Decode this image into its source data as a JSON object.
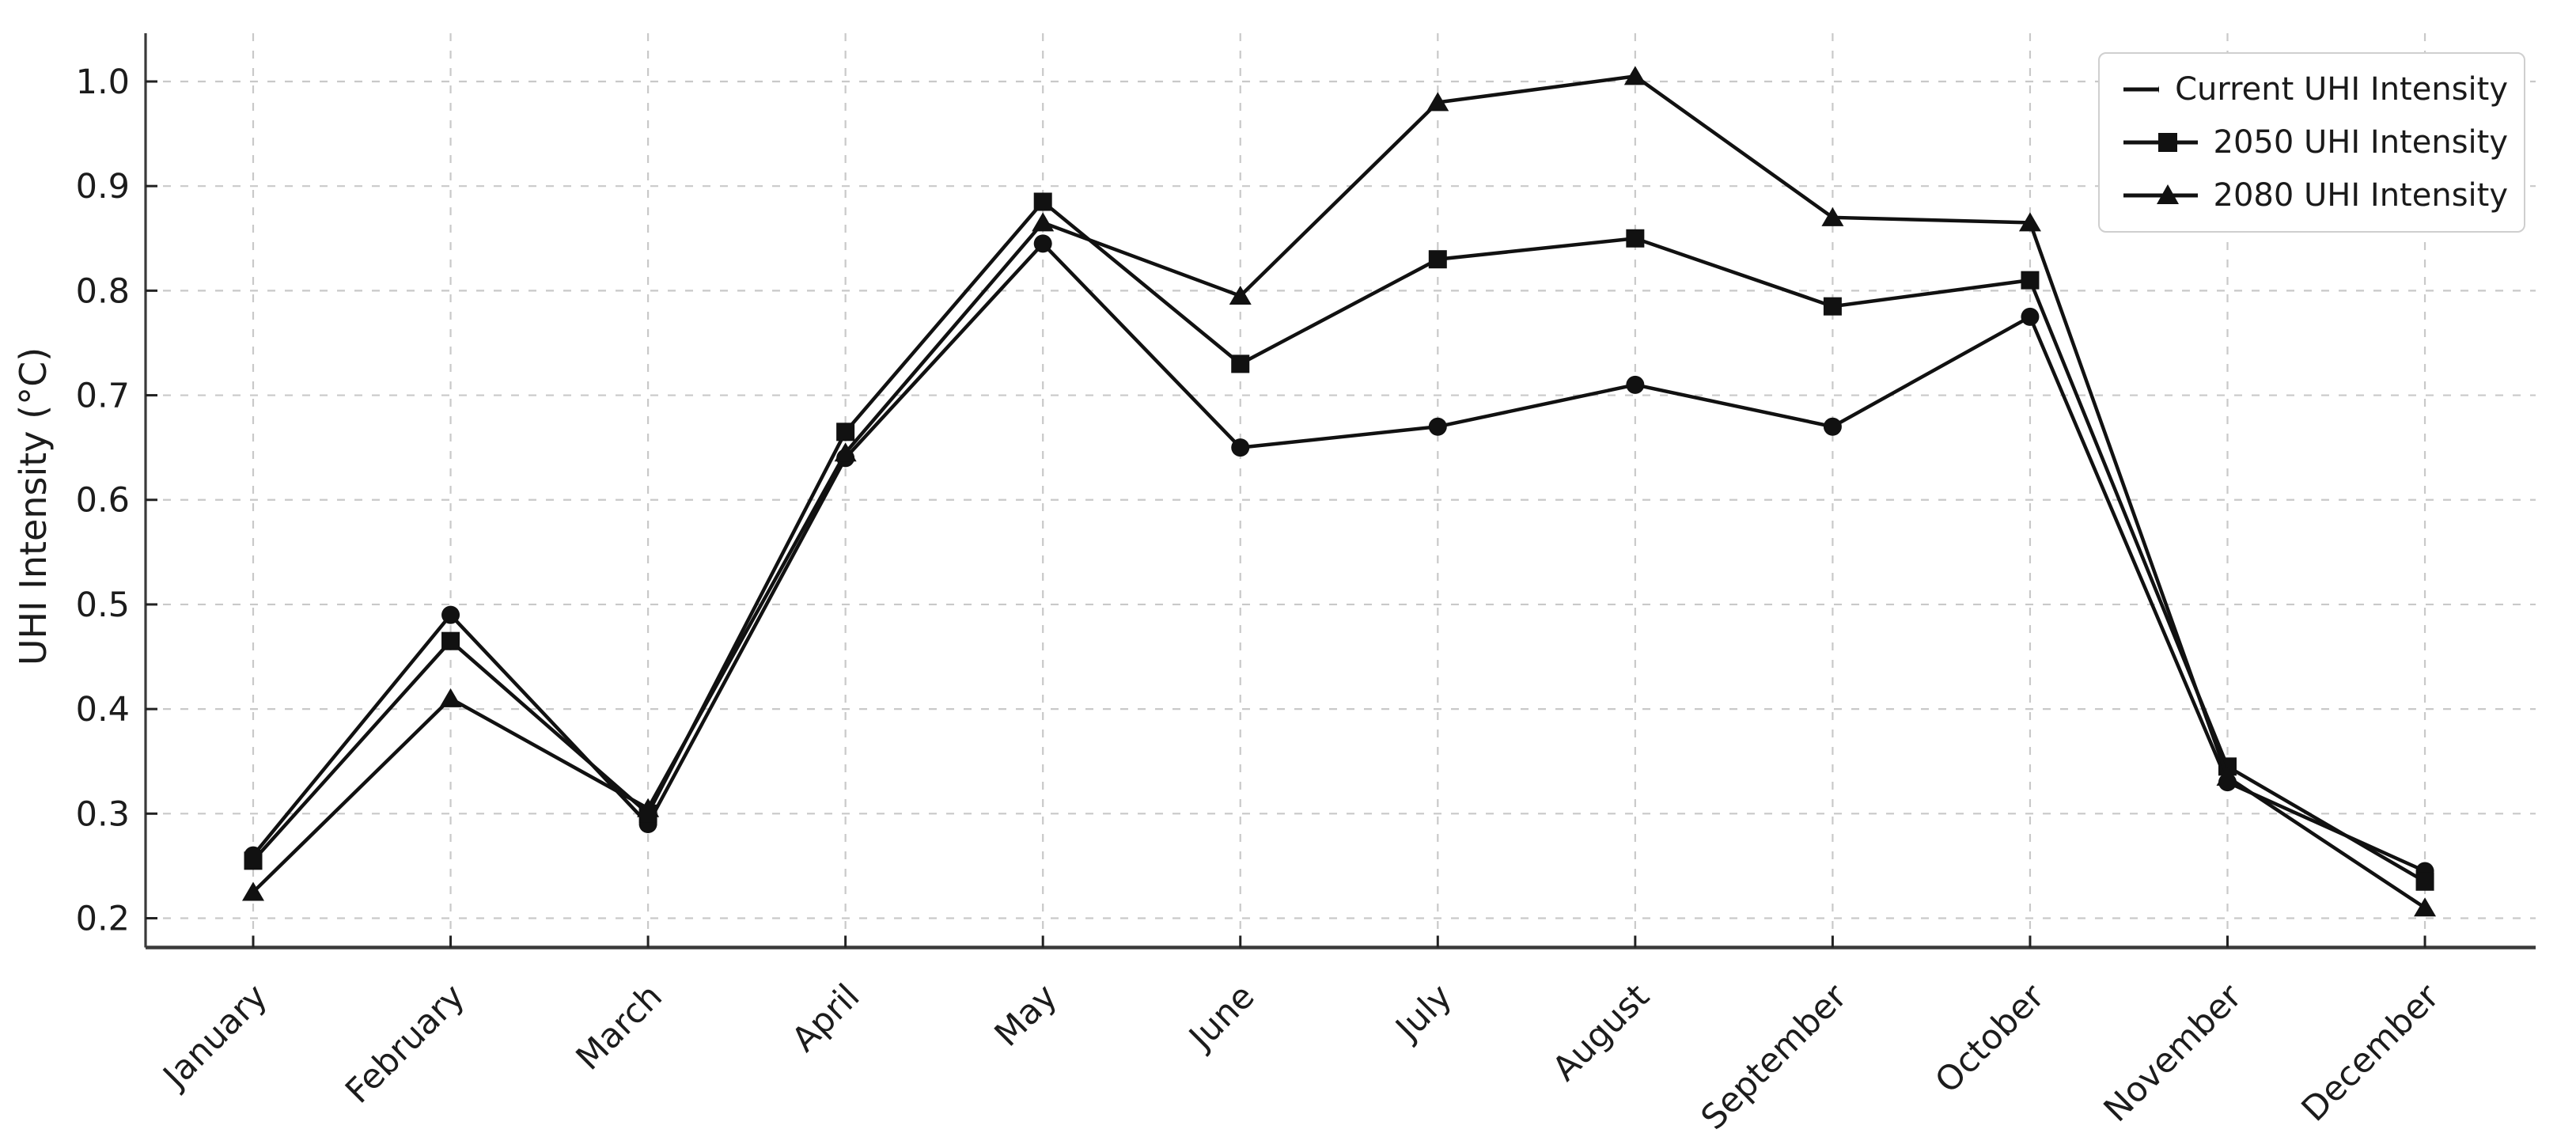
{
  "figure": {
    "background": "#ffffff",
    "line_color": "#111111",
    "grid_color": "#c9c9c9",
    "spine_color": "#3a3a3a",
    "tick_color": "#222222",
    "text_color": "#1c1c1c",
    "legend_border_color": "#cfcfcf"
  },
  "chart_data": {
    "type": "line",
    "title": "",
    "xlabel": "",
    "ylabel": "UHI Intensity (°C)",
    "categories": [
      "January",
      "February",
      "March",
      "April",
      "May",
      "June",
      "July",
      "August",
      "September",
      "October",
      "November",
      "December"
    ],
    "y_ticks": [
      0.2,
      0.3,
      0.4,
      0.5,
      0.6,
      0.7,
      0.8,
      0.9,
      1.0
    ],
    "y_tick_labels": [
      "0.2",
      "0.3",
      "0.4",
      "0.5",
      "0.6",
      "0.7",
      "0.8",
      "0.9",
      "1.0"
    ],
    "ylim": [
      0.17,
      1.05
    ],
    "grid": true,
    "grid_style": "dashed",
    "legend_position": "upper-right",
    "marker_glyphs": {
      "circle": "circle-icon",
      "square": "square-icon",
      "triangle": "triangle-icon"
    },
    "series": [
      {
        "name": "Current UHI Intensity",
        "marker": "circle",
        "values": [
          0.26,
          0.49,
          0.29,
          0.64,
          0.845,
          0.65,
          0.67,
          0.71,
          0.67,
          0.775,
          0.33,
          0.245
        ]
      },
      {
        "name": "2050 UHI Intensity",
        "marker": "square",
        "values": [
          0.255,
          0.465,
          0.3,
          0.665,
          0.885,
          0.73,
          0.83,
          0.85,
          0.785,
          0.81,
          0.345,
          0.235
        ]
      },
      {
        "name": "2080 UHI Intensity",
        "marker": "triangle",
        "values": [
          0.225,
          0.41,
          0.305,
          0.645,
          0.865,
          0.795,
          0.98,
          1.005,
          0.87,
          0.865,
          0.335,
          0.21
        ]
      }
    ]
  }
}
